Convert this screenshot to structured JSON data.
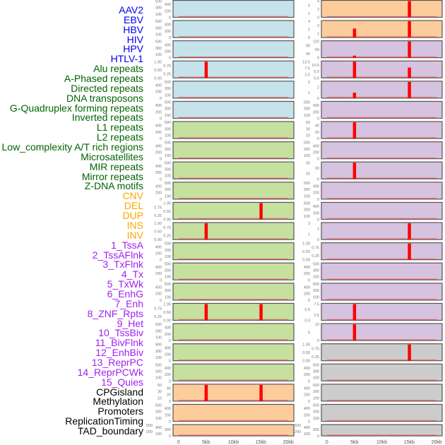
{
  "colors": {
    "virus": "#c6e3eb",
    "repeat": "#c6e0a0",
    "cnv": "#fdcc9c",
    "chromhmm": "#d5c3e0",
    "other": "#cccccc",
    "bar": "#ff0000",
    "baseline": "#e06060"
  },
  "labels": [
    {
      "t": "AAV2",
      "c": "#0000ee"
    },
    {
      "t": "EBV",
      "c": "#0000ee"
    },
    {
      "t": "HBV",
      "c": "#0000ee"
    },
    {
      "t": "HIV",
      "c": "#0000ee"
    },
    {
      "t": "HPV",
      "c": "#0000ee"
    },
    {
      "t": "HTLV-1",
      "c": "#0000ee"
    },
    {
      "t": "Alu repeats",
      "c": "#006400"
    },
    {
      "t": "A-Phased repeats",
      "c": "#006400"
    },
    {
      "t": "Directed repeats",
      "c": "#006400"
    },
    {
      "t": "DNA transposons",
      "c": "#006400"
    },
    {
      "t": "G-Quadruplex forming repeats",
      "c": "#006400"
    },
    {
      "t": "Inverted repeats",
      "c": "#006400"
    },
    {
      "t": "L1 repeats",
      "c": "#006400"
    },
    {
      "t": "L2 repeats",
      "c": "#006400"
    },
    {
      "t": "Low_complexity A/T rich regions",
      "c": "#006400"
    },
    {
      "t": "Microsatellites",
      "c": "#006400"
    },
    {
      "t": "MIR repeats",
      "c": "#006400"
    },
    {
      "t": "Mirror repeats",
      "c": "#006400"
    },
    {
      "t": "Z-DNA motifs",
      "c": "#006400"
    },
    {
      "t": "CNV",
      "c": "#ffa500"
    },
    {
      "t": "DEL",
      "c": "#ffa500"
    },
    {
      "t": "DUP",
      "c": "#ffa500"
    },
    {
      "t": "INS",
      "c": "#ffa500"
    },
    {
      "t": "INV",
      "c": "#ffa500"
    },
    {
      "t": "1_TssA",
      "c": "#a020f0"
    },
    {
      "t": "2_TssAFlnk",
      "c": "#a020f0"
    },
    {
      "t": "3_TxFlnk",
      "c": "#a020f0"
    },
    {
      "t": "4_Tx",
      "c": "#a020f0"
    },
    {
      "t": "5_TxWk",
      "c": "#a020f0"
    },
    {
      "t": "6_EnhG",
      "c": "#a020f0"
    },
    {
      "t": "7_Enh",
      "c": "#a020f0"
    },
    {
      "t": "8_ZNF_Rpts",
      "c": "#a020f0"
    },
    {
      "t": "9_Het",
      "c": "#a020f0"
    },
    {
      "t": "10_TssBiv",
      "c": "#a020f0"
    },
    {
      "t": "11_BivFlnk",
      "c": "#a020f0"
    },
    {
      "t": "12_EnhBiv",
      "c": "#a020f0"
    },
    {
      "t": "13_ReprPC",
      "c": "#a020f0"
    },
    {
      "t": "14_ReprPCWk",
      "c": "#a020f0"
    },
    {
      "t": "15_Quies",
      "c": "#a020f0"
    },
    {
      "t": "CPGisland",
      "c": "#000000"
    },
    {
      "t": "Methylation",
      "c": "#000000"
    },
    {
      "t": "Promoters",
      "c": "#000000"
    },
    {
      "t": "ReplicationTiming",
      "c": "#000000"
    },
    {
      "t": "TAD_boundary",
      "c": "#000000"
    }
  ],
  "chart_data": {
    "type": "bar",
    "xlabel": "",
    "xlim": [
      -1,
      21
    ],
    "x_ticks": [
      {
        "v": 0,
        "t": "0"
      },
      {
        "v": 5,
        "t": "5kb"
      },
      {
        "v": 10,
        "t": "10kb"
      },
      {
        "v": 15,
        "t": "15kb"
      },
      {
        "v": 20,
        "t": "20kb"
      }
    ],
    "columns": [
      [
        {
          "name": "AAV2",
          "cat": "virus",
          "ticks": [
            "0",
            "100",
            "200",
            "300",
            "400",
            "500"
          ],
          "bars": []
        },
        {
          "name": "EBV",
          "cat": "virus",
          "ticks": [
            "0",
            "100",
            "200",
            "300",
            "400",
            "500"
          ],
          "bars": []
        },
        {
          "name": "HBV",
          "cat": "virus",
          "ticks": [
            "0",
            "100",
            "200",
            "300",
            "400",
            "500"
          ],
          "bars": []
        },
        {
          "name": "HIV",
          "cat": "virus",
          "ticks": [
            "0.00",
            "0.25",
            "0.50",
            "0.75",
            "1.00"
          ],
          "bars": [
            [
              5,
              1
            ]
          ]
        },
        {
          "name": "HPV",
          "cat": "virus",
          "ticks": [
            "0",
            "100",
            "200",
            "300",
            "400",
            "500"
          ],
          "bars": []
        },
        {
          "name": "HTLV-1",
          "cat": "virus",
          "ticks": [
            "0",
            "100",
            "200",
            "300",
            "400",
            "500"
          ],
          "bars": []
        },
        {
          "name": "Alu repeats",
          "cat": "repeat",
          "ticks": [
            "0",
            "100",
            "200",
            "300",
            "400",
            "500"
          ],
          "bars": []
        },
        {
          "name": "A-Phased repeats",
          "cat": "repeat",
          "ticks": [
            "0",
            "100",
            "200",
            "300",
            "400",
            "500"
          ],
          "bars": []
        },
        {
          "name": "Directed repeats",
          "cat": "repeat",
          "ticks": [
            "0",
            "100",
            "200",
            "300",
            "400",
            "500"
          ],
          "bars": []
        },
        {
          "name": "DNA transposons",
          "cat": "repeat",
          "ticks": [
            "0",
            "100",
            "200",
            "300",
            "400",
            "500"
          ],
          "bars": []
        },
        {
          "name": "G-Quadruplex forming repeats",
          "cat": "repeat",
          "ticks": [
            "0.00",
            "0.25",
            "0.50",
            "0.75",
            "1.00"
          ],
          "bars": [
            [
              15,
              1
            ]
          ]
        },
        {
          "name": "Inverted repeats",
          "cat": "repeat",
          "ticks": [
            "0.00",
            "0.25",
            "0.50",
            "0.75",
            "1.00"
          ],
          "bars": [
            [
              5,
              1
            ]
          ]
        },
        {
          "name": "L1 repeats",
          "cat": "repeat",
          "ticks": [
            "0",
            "100",
            "200",
            "300",
            "400",
            "500"
          ],
          "bars": []
        },
        {
          "name": "L2 repeats",
          "cat": "repeat",
          "ticks": [
            "0",
            "100",
            "200",
            "300",
            "400",
            "500"
          ],
          "bars": []
        },
        {
          "name": "Low_complexity A/T rich regions",
          "cat": "repeat",
          "ticks": [
            "0",
            "100",
            "200",
            "300",
            "400",
            "500"
          ],
          "bars": []
        },
        {
          "name": "Microsatellites",
          "cat": "repeat",
          "ticks": [
            "0.00",
            "0.25",
            "0.50",
            "0.75",
            "1.00"
          ],
          "bars": [
            [
              5,
              1
            ],
            [
              15,
              1
            ]
          ]
        },
        {
          "name": "MIR repeats",
          "cat": "repeat",
          "ticks": [
            "0",
            "100",
            "200",
            "300",
            "400",
            "500"
          ],
          "bars": []
        },
        {
          "name": "Mirror repeats",
          "cat": "repeat",
          "ticks": [
            "0",
            "100",
            "200",
            "300",
            "400",
            "500"
          ],
          "bars": []
        },
        {
          "name": "Z-DNA motifs",
          "cat": "repeat",
          "ticks": [
            "0",
            "100",
            "200",
            "300",
            "400",
            "500"
          ],
          "bars": []
        },
        {
          "name": "CNV",
          "cat": "cnv",
          "ticks": [
            "0",
            "10",
            "20",
            "30",
            "40",
            "50"
          ],
          "bars": [
            [
              5,
              50
            ],
            [
              15,
              50
            ]
          ]
        },
        {
          "name": "DEL",
          "cat": "cnv",
          "ticks": [
            "0",
            "100",
            "200",
            "300",
            "400",
            "500"
          ],
          "bars": []
        },
        {
          "name": "DUP",
          "cat": "cnv",
          "ticks": [
            "0",
            "100",
            "200",
            "300",
            "400",
            "500"
          ],
          "bars": []
        }
      ],
      [
        {
          "name": "INS",
          "cat": "cnv",
          "ticks": [
            "0",
            "1",
            "2",
            "3",
            "4"
          ],
          "bars": [
            [
              15,
              4
            ]
          ]
        },
        {
          "name": "INV",
          "cat": "cnv",
          "ticks": [
            "0",
            "1",
            "2",
            "3",
            "4"
          ],
          "bars": [
            [
              5,
              2.2
            ],
            [
              15,
              4
            ]
          ]
        },
        {
          "name": "1_TssA",
          "cat": "chromhmm",
          "ticks": [
            "0",
            "30",
            "60",
            "90",
            "120"
          ],
          "bars": [
            [
              5,
              15
            ],
            [
              15,
              120
            ]
          ]
        },
        {
          "name": "2_TssAFlnk",
          "cat": "chromhmm",
          "ticks": [
            "0.0",
            "2.5",
            "5.0",
            "7.5",
            "10.0",
            "12.5"
          ],
          "bars": [
            [
              5,
              12.5
            ],
            [
              15,
              8
            ]
          ]
        },
        {
          "name": "3_TxFlnk",
          "cat": "chromhmm",
          "ticks": [
            "0",
            "1",
            "2",
            "3"
          ],
          "bars": [
            [
              5,
              1
            ],
            [
              15,
              3
            ]
          ]
        },
        {
          "name": "4_Tx",
          "cat": "chromhmm",
          "ticks": [
            "0",
            "100",
            "200",
            "300",
            "400",
            "500"
          ],
          "bars": []
        },
        {
          "name": "5_TxWk",
          "cat": "chromhmm",
          "ticks": [
            "0",
            "10",
            "20",
            "30",
            "40",
            "50"
          ],
          "bars": [
            [
              5,
              50
            ]
          ]
        },
        {
          "name": "6_EnhG",
          "cat": "chromhmm",
          "ticks": [
            "0",
            "100",
            "200",
            "300",
            "400",
            "500"
          ],
          "bars": []
        },
        {
          "name": "7_Enh",
          "cat": "chromhmm",
          "ticks": [
            "0",
            "10",
            "20",
            "30"
          ],
          "bars": [
            [
              5,
              30
            ]
          ]
        },
        {
          "name": "8_ZNF_Rpts",
          "cat": "chromhmm",
          "ticks": [
            "0",
            "100",
            "200",
            "300",
            "400",
            "500"
          ],
          "bars": []
        },
        {
          "name": "9_Het",
          "cat": "chromhmm",
          "ticks": [
            "0",
            "100",
            "200",
            "300",
            "400",
            "500"
          ],
          "bars": []
        },
        {
          "name": "10_TssBiv",
          "cat": "chromhmm",
          "ticks": [
            "0",
            "1",
            "2",
            "3"
          ],
          "bars": [
            [
              15,
              3
            ]
          ]
        },
        {
          "name": "11_BivFlnk",
          "cat": "chromhmm",
          "ticks": [
            "0.00",
            "0.25",
            "0.50",
            "0.75",
            "1.00"
          ],
          "bars": [
            [
              15,
              1
            ]
          ]
        },
        {
          "name": "12_EnhBiv",
          "cat": "chromhmm",
          "ticks": [
            "0",
            "100",
            "200",
            "300",
            "400",
            "500"
          ],
          "bars": []
        },
        {
          "name": "13_ReprPC",
          "cat": "chromhmm",
          "ticks": [
            "0",
            "100",
            "200",
            "300",
            "400",
            "500"
          ],
          "bars": []
        },
        {
          "name": "14_ReprPCWk",
          "cat": "chromhmm",
          "ticks": [
            "0.0",
            "2.5",
            "5.0",
            "7.5"
          ],
          "bars": [
            [
              5,
              8.5
            ]
          ]
        },
        {
          "name": "15_Quies",
          "cat": "chromhmm",
          "ticks": [
            "0",
            "5",
            "10"
          ],
          "bars": [
            [
              5,
              13
            ]
          ]
        },
        {
          "name": "CPGisland",
          "cat": "other",
          "ticks": [
            "0.00",
            "0.25",
            "0.50",
            "0.75",
            "1.00"
          ],
          "bars": [
            [
              15,
              1
            ]
          ]
        },
        {
          "name": "Methylation",
          "cat": "other",
          "ticks": [
            "0",
            "100",
            "200",
            "300",
            "400",
            "500"
          ],
          "bars": []
        },
        {
          "name": "Promoters",
          "cat": "other",
          "ticks": [
            "0",
            "100",
            "200",
            "300",
            "400",
            "500"
          ],
          "bars": []
        },
        {
          "name": "ReplicationTiming",
          "cat": "other",
          "ticks": [
            "0",
            "100",
            "200",
            "300",
            "400",
            "500"
          ],
          "bars": []
        },
        {
          "name": "TAD_boundary",
          "cat": "other",
          "ticks": [
            "0",
            "100",
            "200",
            "300",
            "400",
            "500"
          ],
          "bars": []
        }
      ]
    ]
  }
}
